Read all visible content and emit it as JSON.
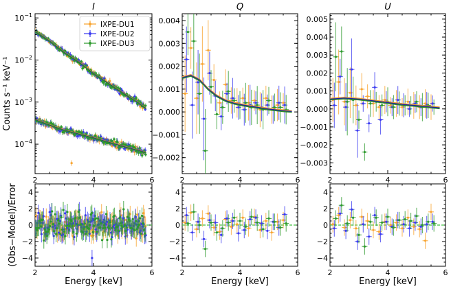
{
  "chart_data": [
    {
      "type": "scatter",
      "title": "I",
      "xlabel": "",
      "ylabel": "Counts s⁻¹ keV⁻¹",
      "xlim": [
        2,
        6
      ],
      "ylim_log10": [
        -4.7,
        -0.9
      ],
      "yscale": "log",
      "x_ticks": [
        "2",
        "4",
        "6"
      ],
      "y_ticks": [
        {
          "base": "10",
          "exp": "−4",
          "v": -4
        },
        {
          "base": "10",
          "exp": "−3",
          "v": -3
        },
        {
          "base": "10",
          "exp": "−2",
          "v": -2
        },
        {
          "base": "10",
          "exp": "−1",
          "v": -1
        }
      ],
      "legend": {
        "position": "top-right",
        "entries": [
          "IXPE-DU1",
          "IXPE-DU2",
          "IXPE-DU3"
        ]
      },
      "series": [
        {
          "name": "IXPE-DU1",
          "color": "#f8a532"
        },
        {
          "name": "IXPE-DU2",
          "color": "#3c3cf0"
        },
        {
          "name": "IXPE-DU3",
          "color": "#2e9a2e"
        }
      ],
      "model_upper": {
        "x": [
          2.0,
          2.5,
          3.0,
          3.5,
          4.0,
          4.5,
          5.0,
          5.5,
          5.8
        ],
        "log10_y": [
          -1.32,
          -1.55,
          -1.82,
          -2.05,
          -2.32,
          -2.55,
          -2.78,
          -3.0,
          -3.15
        ]
      },
      "model_lower": {
        "x": [
          2.0,
          3.0,
          4.0,
          5.0,
          5.8
        ],
        "log10_y": [
          -3.42,
          -3.67,
          -3.85,
          -4.05,
          -4.2
        ]
      }
    },
    {
      "type": "scatter",
      "title": "Q",
      "xlim": [
        2,
        6
      ],
      "ylim": [
        -0.0027,
        0.0043
      ],
      "x_ticks": [
        "2",
        "4",
        "6"
      ],
      "y_ticks": [
        "−0.002",
        "−0.001",
        "0.000",
        "0.001",
        "0.002",
        "0.003",
        "0.004"
      ],
      "y_tick_values": [
        -0.002,
        -0.001,
        0,
        0.001,
        0.002,
        0.003,
        0.004
      ],
      "series": [
        {
          "name": "IXPE-DU1",
          "color": "#f8a532",
          "x": [
            2.1,
            2.3,
            2.5,
            2.7,
            2.9,
            3.1,
            3.3,
            3.5,
            3.7,
            3.9,
            4.1,
            4.3,
            4.5,
            4.7,
            4.9,
            5.1,
            5.3,
            5.5
          ],
          "y": [
            0.0008,
            0.0028,
            0.0006,
            0.0021,
            0.0027,
            0.0014,
            0.0004,
            0.0012,
            0.0005,
            0.0004,
            0.0006,
            0.0004,
            0.0005,
            0.0001,
            0.0006,
            0.0001,
            0.0003,
            0.0004
          ]
        },
        {
          "name": "IXPE-DU2",
          "color": "#3c3cf0",
          "x": [
            2.15,
            2.35,
            2.55,
            2.75,
            2.95,
            3.15,
            3.35,
            3.55,
            3.75,
            3.95,
            4.15,
            4.35,
            4.55,
            4.75,
            4.95,
            5.15,
            5.35,
            5.55
          ],
          "y": [
            0.0023,
            0.0003,
            0.0013,
            -0.0003,
            0.0017,
            0.0007,
            -0.0002,
            0.0008,
            0.0006,
            0.0002,
            0.0001,
            0.0003,
            0.0004,
            0.0002,
            0.0003,
            0.0001,
            0.0004,
            0.0003
          ]
        },
        {
          "name": "IXPE-DU3",
          "color": "#2e9a2e",
          "x": [
            2.2,
            2.4,
            2.6,
            2.8,
            3.0,
            3.2,
            3.4,
            3.6,
            3.8,
            4.0,
            4.2,
            4.4,
            4.6,
            4.8,
            5.0,
            5.2,
            5.4,
            5.6
          ],
          "y": [
            0.0035,
            0.0031,
            0.0008,
            -0.0017,
            0.0011,
            -0.0001,
            0.0002,
            0.0009,
            0.0005,
            0.0003,
            0.0004,
            0.0002,
            0.0003,
            0.0001,
            0.0005,
            0.0002,
            0.0002,
            0.0001
          ]
        }
      ],
      "model": {
        "x": [
          2.0,
          2.3,
          2.6,
          2.9,
          3.2,
          3.5,
          3.8,
          4.1,
          4.4,
          4.7,
          5.0,
          5.3,
          5.6,
          5.8
        ],
        "y": [
          0.0015,
          0.0016,
          0.0014,
          0.001,
          0.0007,
          0.0005,
          0.00038,
          0.0003,
          0.00024,
          0.00018,
          0.00012,
          8e-05,
          4e-05,
          2e-05
        ]
      }
    },
    {
      "type": "scatter",
      "title": "U",
      "xlim": [
        2,
        6
      ],
      "ylim": [
        -0.0036,
        0.0053
      ],
      "x_ticks": [
        "2",
        "4",
        "6"
      ],
      "y_ticks": [
        "−0.003",
        "−0.002",
        "−0.001",
        "0.000",
        "0.001",
        "0.002",
        "0.003",
        "0.004",
        "0.005"
      ],
      "y_tick_values": [
        -0.003,
        -0.002,
        -0.001,
        0,
        0.001,
        0.002,
        0.003,
        0.004,
        0.005
      ],
      "series": [
        {
          "name": "IXPE-DU1",
          "color": "#f8a532",
          "x": [
            2.1,
            2.3,
            2.5,
            2.7,
            2.9,
            3.1,
            3.3,
            3.5,
            3.7,
            3.9,
            4.1,
            4.3,
            4.5,
            4.7,
            4.9,
            5.1,
            5.3,
            5.5
          ],
          "y": [
            0.0005,
            0.0015,
            0.0004,
            0.0009,
            0.0002,
            0.0011,
            0.0007,
            0.0003,
            0.0001,
            0.0005,
            0.0002,
            0.0003,
            0.0001,
            0.0004,
            0.0002,
            0.0001,
            0.0003,
            0.0001
          ]
        },
        {
          "name": "IXPE-DU2",
          "color": "#3c3cf0",
          "x": [
            2.15,
            2.35,
            2.55,
            2.75,
            2.95,
            3.15,
            3.35,
            3.55,
            3.75,
            3.95,
            4.15,
            4.35,
            4.55,
            4.75,
            4.95,
            5.15,
            5.35,
            5.55
          ],
          "y": [
            0.0002,
            0.0018,
            0.0001,
            0.0022,
            -0.0012,
            0.0003,
            -0.0008,
            0.0012,
            -0.0006,
            0.0004,
            0.0001,
            0.0005,
            0.0002,
            0.0,
            0.0003,
            0.0001,
            0.0002,
            0.0003
          ]
        },
        {
          "name": "IXPE-DU3",
          "color": "#2e9a2e",
          "x": [
            2.2,
            2.4,
            2.6,
            2.8,
            3.0,
            3.2,
            3.4,
            3.6,
            3.8,
            4.0,
            4.2,
            4.4,
            4.6,
            4.8,
            5.0,
            5.2,
            5.4,
            5.6
          ],
          "y": [
            0.0029,
            0.0032,
            0.0004,
            0.0005,
            -0.0006,
            -0.0024,
            0.0003,
            0.0004,
            0.0002,
            0.0004,
            0.0001,
            0.0003,
            0.0002,
            0.0002,
            0.0004,
            0.0001,
            0.0002,
            0.0001
          ]
        }
      ],
      "model": {
        "x": [
          2.0,
          2.5,
          3.0,
          3.5,
          4.0,
          4.5,
          5.0,
          5.5,
          5.8
        ],
        "y": [
          0.00055,
          0.0006,
          0.00055,
          0.00045,
          0.00035,
          0.00025,
          0.00018,
          0.0001,
          6e-05
        ]
      }
    },
    {
      "type": "scatter",
      "title": "",
      "xlabel": "Energy [keV]",
      "ylabel": "(Obs−Model)/Error",
      "xlim": [
        2,
        6
      ],
      "ylim": [
        -5,
        5
      ],
      "x_ticks": [
        "2",
        "4",
        "6"
      ],
      "y_ticks": [
        "−4",
        "−2",
        "0",
        "2",
        "4"
      ],
      "y_tick_values": [
        -4,
        -2,
        0,
        2,
        4
      ]
    },
    {
      "type": "scatter",
      "title": "",
      "xlabel": "Energy [keV]",
      "xlim": [
        2,
        6
      ],
      "ylim": [
        -5,
        5
      ],
      "x_ticks": [
        "2",
        "4",
        "6"
      ],
      "y_ticks": [
        "−4",
        "−2",
        "0",
        "2",
        "4"
      ],
      "y_tick_values": [
        -4,
        -2,
        0,
        2,
        4
      ],
      "residuals": {
        "x": [
          2.1,
          2.3,
          2.5,
          2.7,
          2.9,
          3.1,
          3.3,
          3.5,
          3.7,
          3.9,
          4.1,
          4.3,
          4.5,
          4.7,
          4.9,
          5.1,
          5.3,
          5.5
        ],
        "DU1": [
          0.3,
          1.5,
          -0.5,
          0.8,
          1.4,
          -0.3,
          -0.8,
          0.7,
          -0.2,
          0.1,
          0.9,
          -0.4,
          1.0,
          -0.6,
          0.5,
          -0.9,
          0.4,
          0.6
        ],
        "DU2": [
          1.2,
          -0.9,
          0.4,
          -1.7,
          0.6,
          0.3,
          -1.2,
          0.8,
          0.5,
          -1.0,
          -0.6,
          0.7,
          0.9,
          0.2,
          -0.7,
          0.4,
          -0.3,
          1.3
        ],
        "DU3": [
          0.2,
          1.6,
          0.0,
          -2.9,
          0.3,
          -0.9,
          -0.4,
          0.3,
          0.9,
          0.5,
          -0.2,
          1.0,
          0.3,
          -0.5,
          0.8,
          0.4,
          -0.3,
          0.2
        ]
      }
    },
    {
      "type": "scatter",
      "title": "",
      "xlabel": "Energy [keV]",
      "xlim": [
        2,
        6
      ],
      "ylim": [
        -5,
        5
      ],
      "x_ticks": [
        "2",
        "4",
        "6"
      ],
      "y_ticks": [
        "−4",
        "−2",
        "0",
        "2",
        "4"
      ],
      "y_tick_values": [
        -4,
        -2,
        0,
        2,
        4
      ],
      "residuals": {
        "x": [
          2.1,
          2.3,
          2.5,
          2.7,
          2.9,
          3.1,
          3.3,
          3.5,
          3.7,
          3.9,
          4.1,
          4.3,
          4.5,
          4.7,
          4.9,
          5.1,
          5.3,
          5.5
        ],
        "DU1": [
          0.1,
          1.2,
          -0.3,
          0.6,
          -0.4,
          1.0,
          0.5,
          -0.6,
          -0.8,
          0.4,
          0.0,
          0.3,
          -0.4,
          0.9,
          -0.2,
          -0.5,
          -1.9,
          1.6
        ],
        "DU2": [
          -0.4,
          1.4,
          -0.7,
          1.9,
          -2.0,
          0.1,
          -1.4,
          1.2,
          -1.1,
          0.4,
          -0.2,
          0.6,
          0.1,
          -0.4,
          0.3,
          -0.2,
          0.1,
          0.4
        ],
        "DU3": [
          0.8,
          2.4,
          0.2,
          0.9,
          -1.2,
          -2.6,
          0.4,
          0.9,
          0.3,
          1.0,
          -0.3,
          0.6,
          0.7,
          0.5,
          1.1,
          0.0,
          0.4,
          0.2
        ]
      }
    }
  ]
}
